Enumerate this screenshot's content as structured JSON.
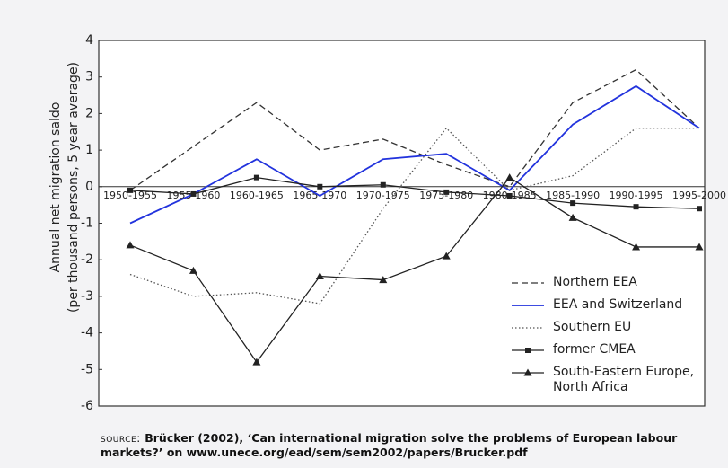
{
  "chart_data": {
    "type": "line",
    "ylabel": [
      "Annual net migration saldo",
      "(per thousand persons, 5 year average)"
    ],
    "categories": [
      "1950-1955",
      "1955-1960",
      "1960-1965",
      "1965-1970",
      "1970-1975",
      "1975-1980",
      "1980-1985",
      "1985-1990",
      "1990-1995",
      "1995-2000"
    ],
    "ylim": [
      -6,
      4
    ],
    "yticks": [
      4,
      3,
      2,
      1,
      0,
      -1,
      -2,
      -3,
      -4,
      -5,
      -6
    ],
    "grid": false,
    "legend": "lower right",
    "series": [
      {
        "name": "Northern EEA",
        "color": "#333333",
        "style": "dashed",
        "marker": "none",
        "values": [
          -0.1,
          1.1,
          2.3,
          1.0,
          1.3,
          0.6,
          0.0,
          2.3,
          3.2,
          1.6
        ]
      },
      {
        "name": "EEA and Switzerland",
        "color": "#2233dd",
        "style": "solid",
        "marker": "none",
        "values": [
          -1.0,
          -0.2,
          0.75,
          -0.25,
          0.75,
          0.9,
          -0.1,
          1.7,
          2.75,
          1.6
        ]
      },
      {
        "name": "Southern EU",
        "color": "#555555",
        "style": "dotted",
        "marker": "none",
        "values": [
          -2.4,
          -3.0,
          -2.9,
          -3.2,
          -0.6,
          1.6,
          -0.1,
          0.3,
          1.6,
          1.6
        ]
      },
      {
        "name": "former CMEA",
        "color": "#222222",
        "style": "solid",
        "marker": "square",
        "values": [
          -0.1,
          -0.2,
          0.25,
          0.0,
          0.05,
          -0.15,
          -0.25,
          -0.45,
          -0.55,
          -0.6
        ]
      },
      {
        "name": "South-Eastern Europe, North Africa",
        "color": "#222222",
        "style": "solid",
        "marker": "triangle",
        "values": [
          -1.6,
          -2.3,
          -4.8,
          -2.45,
          -2.55,
          -1.9,
          0.25,
          -0.85,
          -1.65,
          -1.65
        ]
      }
    ],
    "source": {
      "label": "source:",
      "text": "Brücker (2002), ‘Can international migration solve the problems of European labour markets?’ on www.unece.org/ead/sem/sem2002/papers/Brucker.pdf"
    }
  }
}
